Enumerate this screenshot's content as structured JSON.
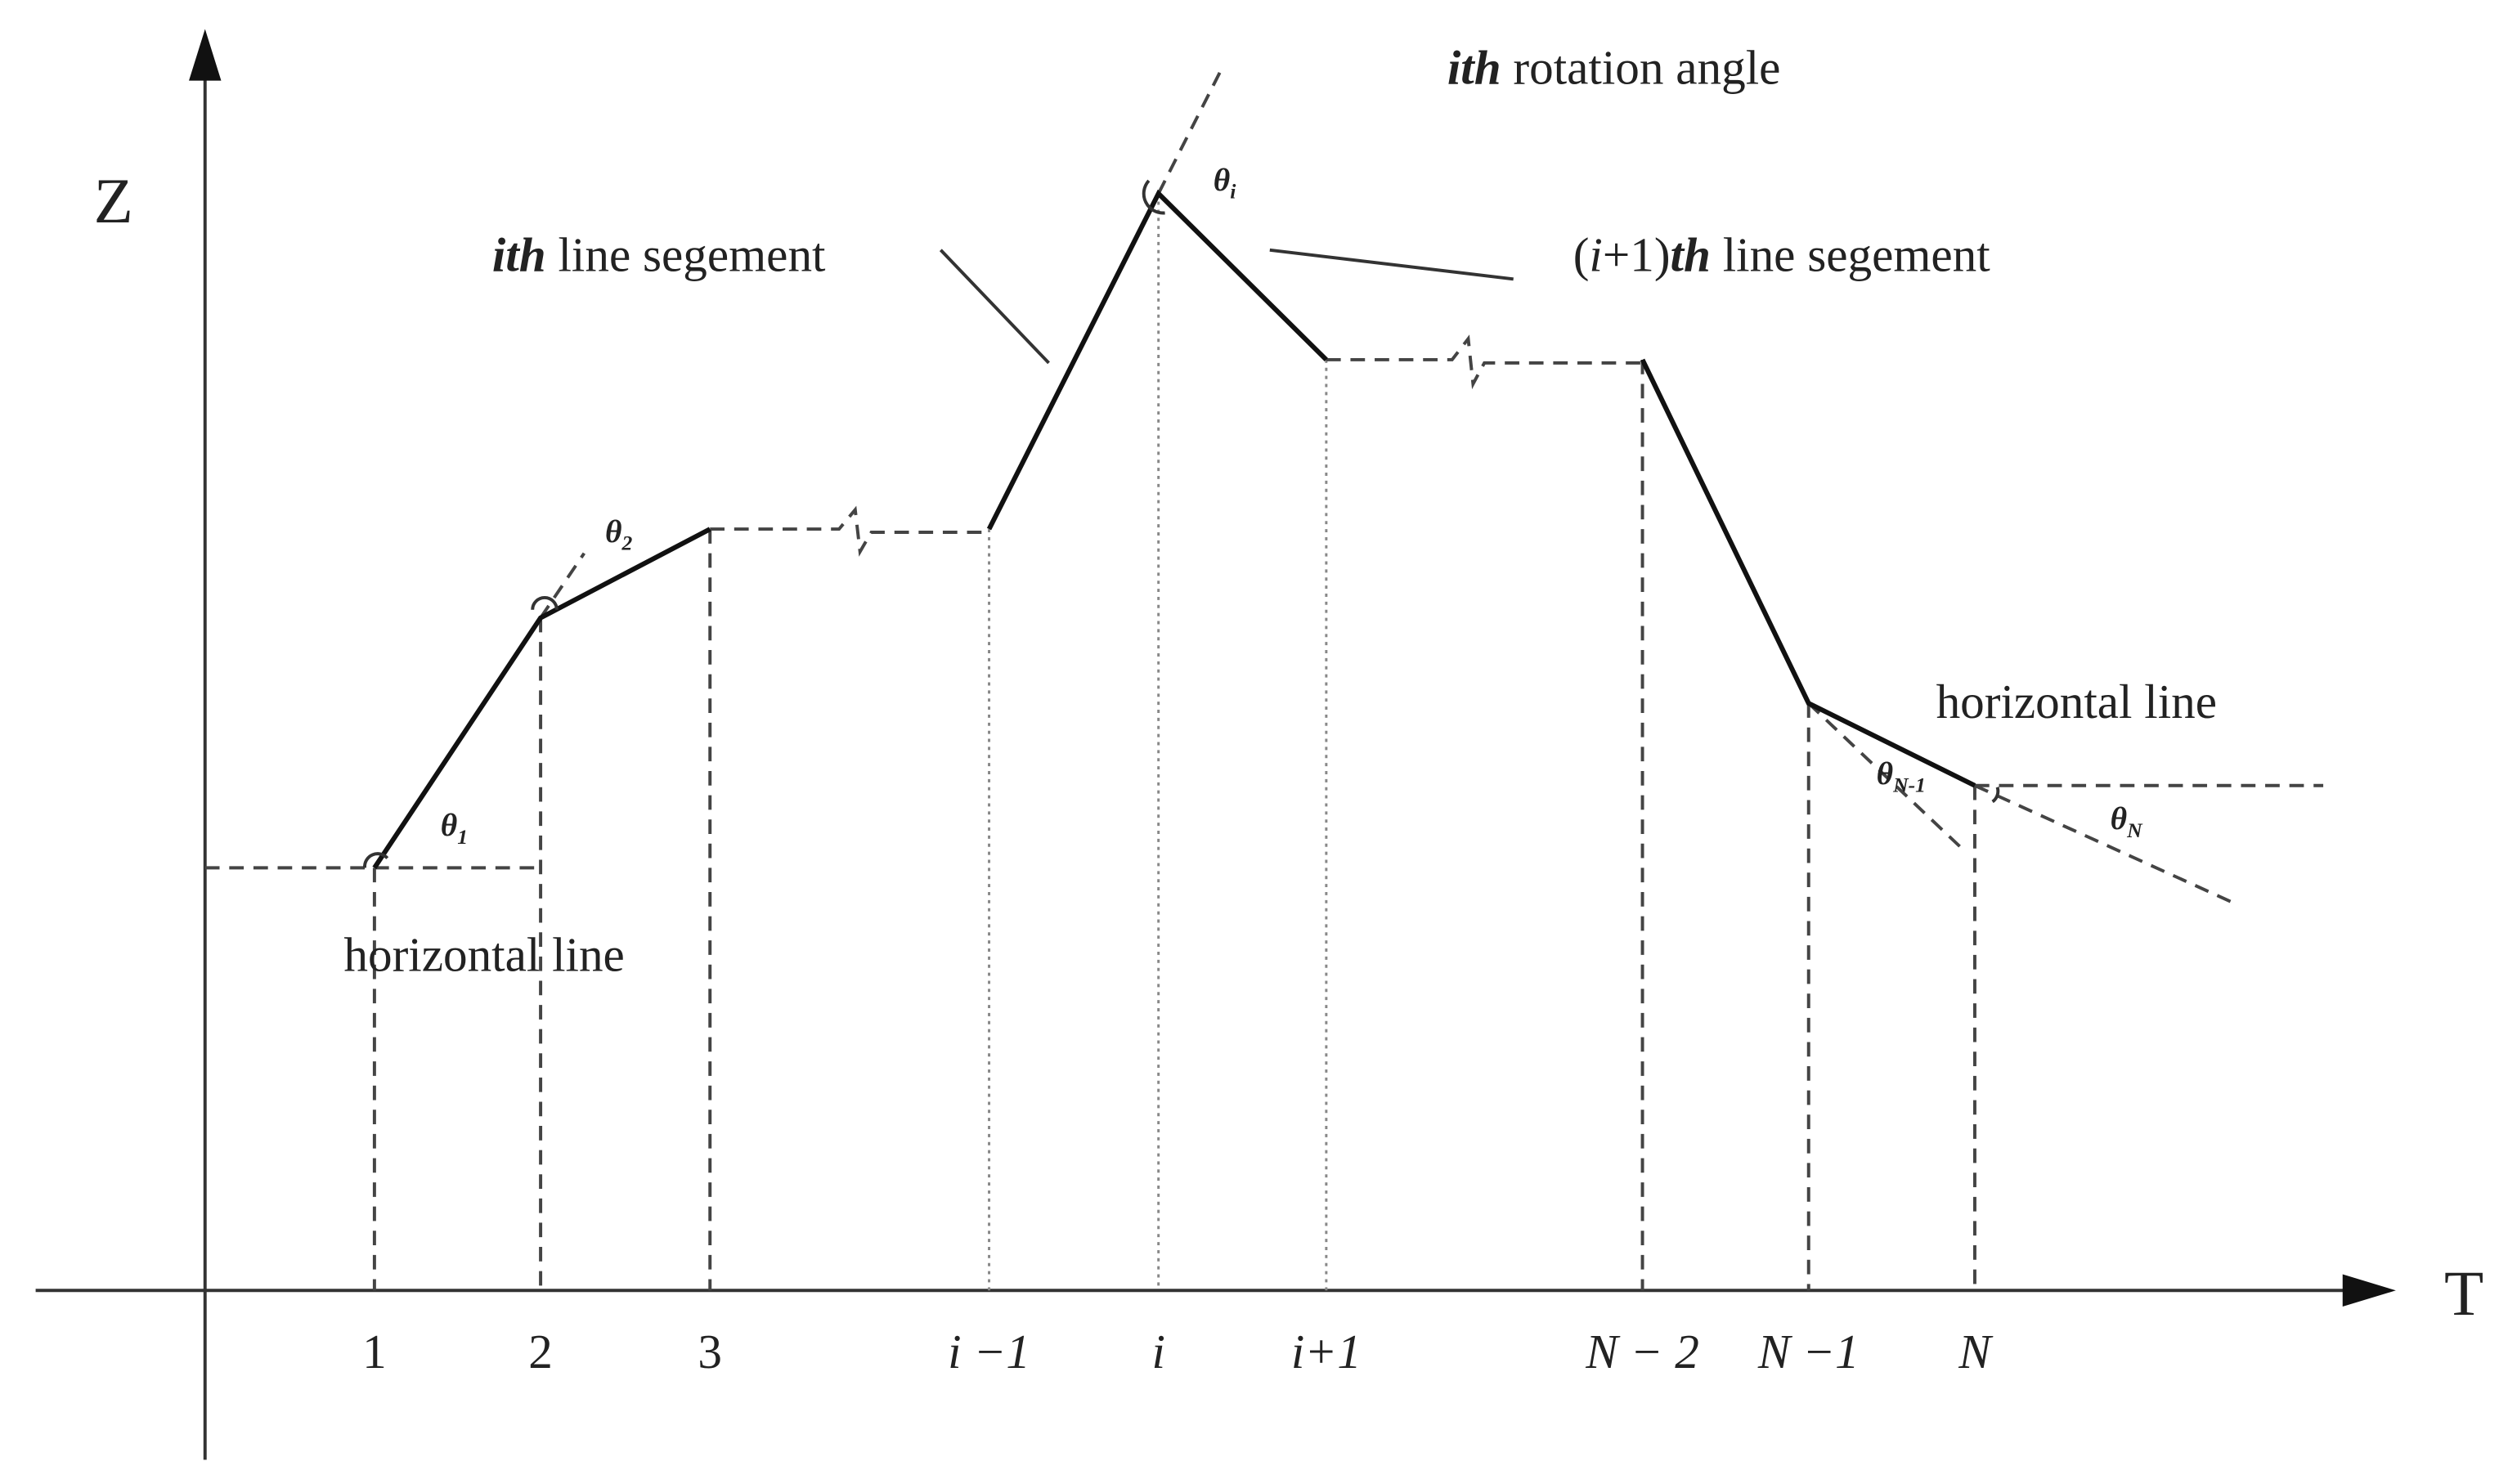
{
  "axes": {
    "y_label": "Z",
    "x_label": "T"
  },
  "x_ticks": [
    "1",
    "2",
    "3",
    "i −1",
    "i",
    "i+1",
    "N − 2",
    "N −1",
    "N"
  ],
  "annotations": {
    "rotation_angle": {
      "emph": "ith",
      "rest": "rotation angle"
    },
    "line_segment_i": {
      "emph": "ith",
      "rest": "line segement"
    },
    "line_segment_i1": {
      "pre": "(",
      "i": "i",
      "mid": "+1)",
      "emph": "th",
      "rest": "line segement"
    },
    "horizontal_left": "horizontal line",
    "horizontal_right": "horizontal line"
  },
  "angles": [
    {
      "symbol": "θ",
      "sub": "1"
    },
    {
      "symbol": "θ",
      "sub": "2"
    },
    {
      "symbol": "θ",
      "sub": "i"
    },
    {
      "symbol": "θ",
      "sub": "N-1"
    },
    {
      "symbol": "θ",
      "sub": "N"
    }
  ]
}
